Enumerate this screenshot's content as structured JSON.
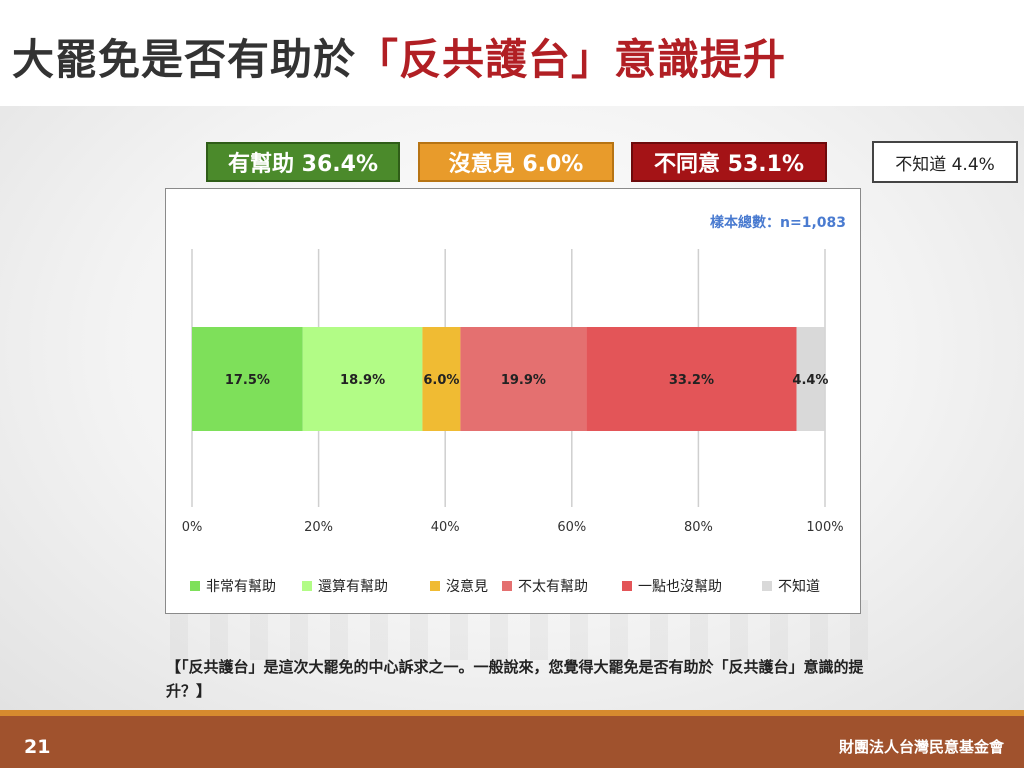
{
  "title": {
    "main": "大罷免是否有助於",
    "highlight": "「反共護台」意識提升"
  },
  "summary": {
    "help": "有幫助 36.4%",
    "no_opinion": "沒意見 6.0%",
    "disagree": "不同意 53.1%",
    "unknown": "不知道 4.4%"
  },
  "question": "【「反共護台」是這次大罷免的中心訴求之一。一般說來，您覺得大罷免是否有助於「反共護台」意識的提升？】",
  "footer": {
    "page_number": "21",
    "org": "財團法人台灣民意基金會"
  },
  "colors": {
    "help_badge": "#4b8a2b",
    "noop_badge": "#e89b2b",
    "disagree_badge": "#a41316",
    "title_highlight": "#b11f24"
  },
  "chart_data": {
    "type": "bar",
    "orientation": "horizontal-stacked",
    "sample_note": "樣本總數：n=1,083",
    "x_ticks": [
      "0%",
      "20%",
      "40%",
      "60%",
      "80%",
      "100%"
    ],
    "xlim": [
      0,
      100
    ],
    "grid": true,
    "legend_position": "bottom",
    "series": [
      {
        "name": "非常有幫助",
        "value": 17.5,
        "label": "17.5%",
        "color": "#7ee05a"
      },
      {
        "name": "還算有幫助",
        "value": 18.9,
        "label": "18.9%",
        "color": "#b2fc86"
      },
      {
        "name": "沒意見",
        "value": 6.0,
        "label": "6.0%",
        "color": "#f0bb33"
      },
      {
        "name": "不太有幫助",
        "value": 19.9,
        "label": "19.9%",
        "color": "#e47070"
      },
      {
        "name": "一點也沒幫助",
        "value": 33.2,
        "label": "33.2%",
        "color": "#e35558"
      },
      {
        "name": "不知道",
        "value": 4.4,
        "label": "4.4%",
        "color": "#d9d9d9"
      }
    ]
  }
}
